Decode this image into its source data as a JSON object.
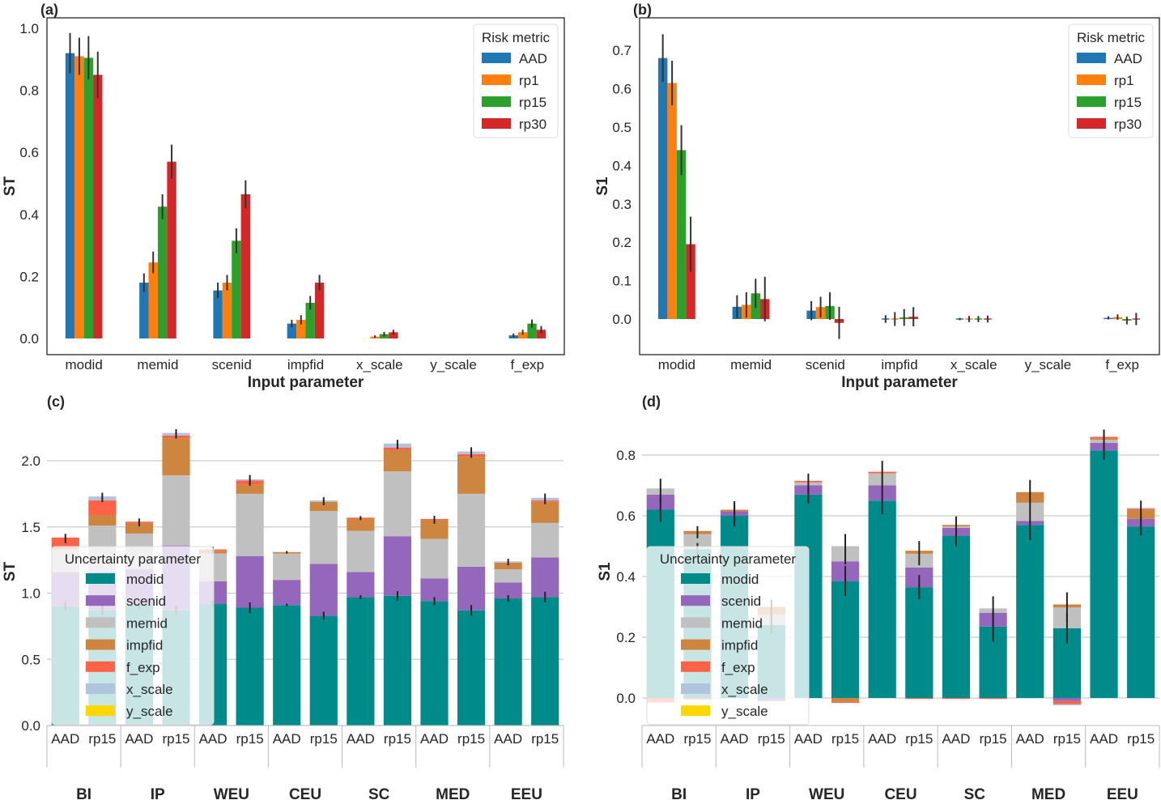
{
  "colors": {
    "AAD": "#1f77b4",
    "rp1": "#ff7f0e",
    "rp15": "#2ca02c",
    "rp30": "#d62728",
    "modid": "#008b8b",
    "scenid": "#9467bd",
    "memid": "#c0c0c0",
    "impfid": "#cd853f",
    "f_exp": "#ff6347",
    "x_scale": "#b0c4de",
    "y_scale": "#ffd700"
  },
  "chart_data": [
    {
      "panel": "(a)",
      "type": "bar",
      "xlabel": "Input parameter",
      "ylabel": "ST",
      "ylim": [
        -0.04,
        1.04
      ],
      "yticks": [
        "0.0",
        "0.2",
        "0.4",
        "0.6",
        "0.8",
        "1.0"
      ],
      "grid": false,
      "legend_title": "Risk metric",
      "legend_position": "top-right",
      "categories": [
        "modid",
        "memid",
        "scenid",
        "impfid",
        "x_scale",
        "y_scale",
        "f_exp"
      ],
      "series": [
        {
          "name": "AAD",
          "values": [
            0.92,
            0.18,
            0.155,
            0.048,
            0.0,
            0.0,
            0.01
          ],
          "err": [
            0.065,
            0.03,
            0.025,
            0.012,
            0.0,
            0.0,
            0.006
          ]
        },
        {
          "name": "rp1",
          "values": [
            0.91,
            0.245,
            0.18,
            0.06,
            0.006,
            0.0,
            0.02
          ],
          "err": [
            0.06,
            0.035,
            0.025,
            0.015,
            0.004,
            0.0,
            0.008
          ]
        },
        {
          "name": "rp15",
          "values": [
            0.905,
            0.425,
            0.315,
            0.115,
            0.014,
            0.0,
            0.048
          ],
          "err": [
            0.07,
            0.04,
            0.04,
            0.022,
            0.007,
            0.0,
            0.013
          ]
        },
        {
          "name": "rp30",
          "values": [
            0.85,
            0.57,
            0.465,
            0.18,
            0.02,
            0.0,
            0.028
          ],
          "err": [
            0.075,
            0.055,
            0.045,
            0.025,
            0.008,
            0.0,
            0.012
          ]
        }
      ]
    },
    {
      "panel": "(b)",
      "type": "bar",
      "xlabel": "Input parameter",
      "ylabel": "S1",
      "ylim": [
        -0.095,
        0.78
      ],
      "yticks": [
        "0.0",
        "0.1",
        "0.2",
        "0.3",
        "0.4",
        "0.5",
        "0.6",
        "0.7"
      ],
      "grid": false,
      "legend_title": "Risk metric",
      "legend_position": "top-right",
      "categories": [
        "modid",
        "memid",
        "scenid",
        "impfid",
        "x_scale",
        "y_scale",
        "f_exp"
      ],
      "series": [
        {
          "name": "AAD",
          "values": [
            0.68,
            0.032,
            0.022,
            0.0,
            0.0,
            0.0,
            0.003
          ],
          "err": [
            0.062,
            0.03,
            0.025,
            0.01,
            0.003,
            0.0,
            0.004
          ]
        },
        {
          "name": "rp1",
          "values": [
            0.615,
            0.037,
            0.031,
            0.0,
            0.0,
            0.0,
            0.005
          ],
          "err": [
            0.058,
            0.033,
            0.027,
            0.018,
            0.008,
            0.0,
            0.007
          ]
        },
        {
          "name": "rp15",
          "values": [
            0.44,
            0.067,
            0.034,
            0.004,
            0.0,
            0.0,
            -0.004
          ],
          "err": [
            0.065,
            0.038,
            0.036,
            0.022,
            0.008,
            0.0,
            0.01
          ]
        },
        {
          "name": "rp30",
          "values": [
            0.195,
            0.052,
            -0.01,
            0.006,
            0.0,
            0.0,
            0.0
          ],
          "err": [
            0.072,
            0.058,
            0.042,
            0.025,
            0.009,
            0.0,
            0.016
          ]
        }
      ]
    },
    {
      "panel": "(c)",
      "type": "bar",
      "stacked": true,
      "ylabel": "ST",
      "ylim": [
        0.0,
        2.3
      ],
      "yticks": [
        "0.0",
        "0.5",
        "1.0",
        "1.5",
        "2.0"
      ],
      "grid": true,
      "legend_title": "Uncertainty parameter",
      "legend_position": "lower-left",
      "groups": [
        "BI",
        "IP",
        "WEU",
        "CEU",
        "SC",
        "MED",
        "EEU"
      ],
      "subcategories": [
        "AAD",
        "rp15"
      ],
      "stack_order": [
        "modid",
        "scenid",
        "memid",
        "impfid",
        "f_exp",
        "x_scale",
        "y_scale"
      ],
      "bars": [
        {
          "group": "BI",
          "metric": "AAD",
          "modid": 0.9,
          "scenid": 0.26,
          "memid": 0.17,
          "impfid": 0.02,
          "f_exp": 0.07,
          "x_scale": 0.0,
          "y_scale": 0.0
        },
        {
          "group": "BI",
          "metric": "rp15",
          "modid": 0.87,
          "scenid": 0.29,
          "memid": 0.35,
          "impfid": 0.08,
          "f_exp": 0.11,
          "x_scale": 0.03,
          "y_scale": 0.0
        },
        {
          "group": "IP",
          "metric": "AAD",
          "modid": 0.91,
          "scenid": 0.27,
          "memid": 0.27,
          "impfid": 0.08,
          "f_exp": 0.01,
          "x_scale": 0.0,
          "y_scale": 0.0
        },
        {
          "group": "IP",
          "metric": "rp15",
          "modid": 0.87,
          "scenid": 0.49,
          "memid": 0.53,
          "impfid": 0.28,
          "f_exp": 0.02,
          "x_scale": 0.02,
          "y_scale": 0.0
        },
        {
          "group": "WEU",
          "metric": "AAD",
          "modid": 0.92,
          "scenid": 0.17,
          "memid": 0.21,
          "impfid": 0.02,
          "f_exp": 0.01,
          "x_scale": 0.0,
          "y_scale": 0.0
        },
        {
          "group": "WEU",
          "metric": "rp15",
          "modid": 0.89,
          "scenid": 0.39,
          "memid": 0.47,
          "impfid": 0.07,
          "f_exp": 0.03,
          "x_scale": 0.01,
          "y_scale": 0.0
        },
        {
          "group": "CEU",
          "metric": "AAD",
          "modid": 0.91,
          "scenid": 0.19,
          "memid": 0.2,
          "impfid": 0.01,
          "f_exp": 0.0,
          "x_scale": 0.0,
          "y_scale": 0.0
        },
        {
          "group": "CEU",
          "metric": "rp15",
          "modid": 0.83,
          "scenid": 0.39,
          "memid": 0.4,
          "impfid": 0.07,
          "f_exp": 0.0,
          "x_scale": 0.01,
          "y_scale": 0.0
        },
        {
          "group": "SC",
          "metric": "AAD",
          "modid": 0.97,
          "scenid": 0.19,
          "memid": 0.31,
          "impfid": 0.09,
          "f_exp": 0.01,
          "x_scale": 0.0,
          "y_scale": 0.0
        },
        {
          "group": "SC",
          "metric": "rp15",
          "modid": 0.98,
          "scenid": 0.45,
          "memid": 0.49,
          "impfid": 0.16,
          "f_exp": 0.02,
          "x_scale": 0.03,
          "y_scale": 0.0
        },
        {
          "group": "MED",
          "metric": "AAD",
          "modid": 0.94,
          "scenid": 0.17,
          "memid": 0.3,
          "impfid": 0.14,
          "f_exp": 0.01,
          "x_scale": 0.0,
          "y_scale": 0.0
        },
        {
          "group": "MED",
          "metric": "rp15",
          "modid": 0.87,
          "scenid": 0.33,
          "memid": 0.55,
          "impfid": 0.28,
          "f_exp": 0.02,
          "x_scale": 0.02,
          "y_scale": 0.0
        },
        {
          "group": "EEU",
          "metric": "AAD",
          "modid": 0.96,
          "scenid": 0.12,
          "memid": 0.1,
          "impfid": 0.05,
          "f_exp": 0.0,
          "x_scale": 0.01,
          "y_scale": 0.0
        },
        {
          "group": "EEU",
          "metric": "rp15",
          "modid": 0.97,
          "scenid": 0.3,
          "memid": 0.26,
          "impfid": 0.16,
          "f_exp": 0.01,
          "x_scale": 0.02,
          "y_scale": 0.0
        }
      ]
    },
    {
      "panel": "(d)",
      "type": "bar",
      "stacked": true,
      "ylabel": "S1",
      "ylim": [
        -0.1,
        0.9
      ],
      "yticks": [
        "0.0",
        "0.2",
        "0.4",
        "0.6",
        "0.8"
      ],
      "grid": true,
      "legend_title": "Uncertainty parameter",
      "legend_position": "lower-left",
      "groups": [
        "BI",
        "IP",
        "WEU",
        "CEU",
        "SC",
        "MED",
        "EEU"
      ],
      "subcategories": [
        "AAD",
        "rp15"
      ],
      "stack_order": [
        "modid",
        "scenid",
        "memid",
        "impfid",
        "f_exp",
        "x_scale",
        "y_scale"
      ],
      "bars": [
        {
          "group": "BI",
          "metric": "AAD",
          "modid": 0.62,
          "scenid": 0.05,
          "memid": 0.02,
          "impfid": 0.0,
          "f_exp": -0.015,
          "x_scale": 0.0,
          "y_scale": 0.0
        },
        {
          "group": "BI",
          "metric": "rp15",
          "modid": 0.49,
          "scenid": 0.0,
          "memid": 0.05,
          "impfid": 0.01,
          "f_exp": -0.005,
          "x_scale": 0.0,
          "y_scale": 0.0
        },
        {
          "group": "IP",
          "metric": "AAD",
          "modid": 0.6,
          "scenid": 0.015,
          "memid": 0.0,
          "impfid": 0.005,
          "f_exp": 0.0,
          "x_scale": 0.0,
          "y_scale": 0.0
        },
        {
          "group": "IP",
          "metric": "rp15",
          "modid": 0.24,
          "scenid": -0.01,
          "memid": 0.035,
          "impfid": 0.025,
          "f_exp": 0.0,
          "x_scale": 0.0,
          "y_scale": 0.0
        },
        {
          "group": "WEU",
          "metric": "AAD",
          "modid": 0.67,
          "scenid": 0.03,
          "memid": 0.01,
          "impfid": 0.0,
          "f_exp": 0.005,
          "x_scale": 0.0,
          "y_scale": 0.0
        },
        {
          "group": "WEU",
          "metric": "rp15",
          "modid": 0.385,
          "scenid": 0.065,
          "memid": 0.05,
          "impfid": -0.013,
          "f_exp": -0.003,
          "x_scale": 0.0,
          "y_scale": 0.0
        },
        {
          "group": "CEU",
          "metric": "AAD",
          "modid": 0.65,
          "scenid": 0.05,
          "memid": 0.04,
          "impfid": 0.0,
          "f_exp": 0.005,
          "x_scale": 0.0,
          "y_scale": 0.0
        },
        {
          "group": "CEU",
          "metric": "rp15",
          "modid": 0.365,
          "scenid": 0.065,
          "memid": 0.045,
          "impfid": 0.01,
          "f_exp": -0.003,
          "x_scale": 0.0,
          "y_scale": 0.0
        },
        {
          "group": "SC",
          "metric": "AAD",
          "modid": 0.535,
          "scenid": 0.025,
          "memid": 0.005,
          "impfid": 0.005,
          "f_exp": -0.003,
          "x_scale": 0.0,
          "y_scale": 0.0
        },
        {
          "group": "SC",
          "metric": "rp15",
          "modid": 0.235,
          "scenid": 0.045,
          "memid": 0.015,
          "impfid": 0.0,
          "f_exp": -0.003,
          "x_scale": 0.0,
          "y_scale": 0.0
        },
        {
          "group": "MED",
          "metric": "AAD",
          "modid": 0.57,
          "scenid": 0.013,
          "memid": 0.06,
          "impfid": 0.035,
          "f_exp": 0.0,
          "x_scale": 0.0,
          "y_scale": 0.0
        },
        {
          "group": "MED",
          "metric": "rp15",
          "modid": 0.23,
          "scenid": -0.01,
          "memid": 0.068,
          "impfid": 0.01,
          "f_exp": -0.01,
          "x_scale": -0.004,
          "y_scale": 0.0
        },
        {
          "group": "EEU",
          "metric": "AAD",
          "modid": 0.815,
          "scenid": 0.025,
          "memid": 0.01,
          "impfid": 0.005,
          "f_exp": 0.005,
          "x_scale": 0.0,
          "y_scale": 0.0
        },
        {
          "group": "EEU",
          "metric": "rp15",
          "modid": 0.565,
          "scenid": 0.025,
          "memid": 0.0,
          "impfid": 0.03,
          "f_exp": 0.003,
          "x_scale": 0.003,
          "y_scale": 0.0
        }
      ]
    }
  ],
  "errorbars_cd": {
    "c": [
      0.07,
      0.07,
      0.06,
      0.07,
      0.05,
      0.08,
      0.02,
      0.06,
      0.03,
      0.07,
      0.06,
      0.08,
      0.05,
      0.08
    ],
    "d": [
      0.08,
      0.04,
      0.07,
      0.06,
      0.06,
      0.1,
      0.09,
      0.08,
      0.07,
      0.1,
      0.1,
      0.1,
      0.06,
      0.06
    ]
  }
}
